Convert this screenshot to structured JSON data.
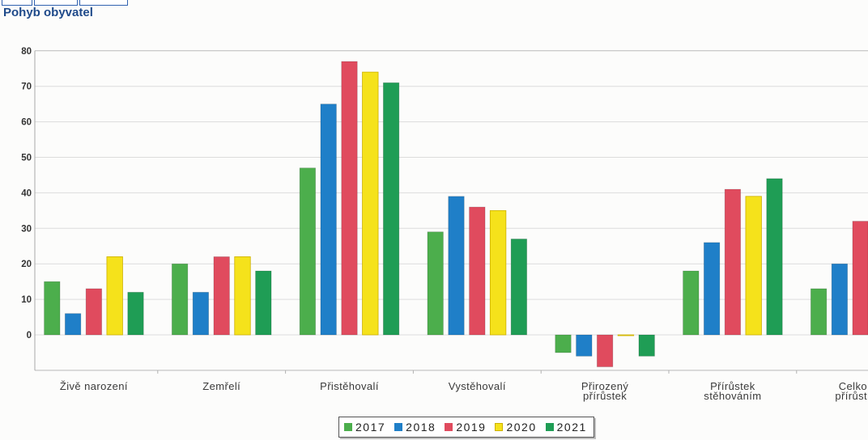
{
  "chart_data": {
    "type": "bar",
    "title": "Pohyb obyvatel",
    "xlabel": "",
    "ylabel": "",
    "categories": [
      [
        "Živě narození"
      ],
      [
        "Zemřelí"
      ],
      [
        "Přistěhovalí"
      ],
      [
        "Vystěhovalí"
      ],
      [
        "Přirozený",
        "přírůstek"
      ],
      [
        "Přírůstek",
        "stěhováním"
      ],
      [
        "Celko",
        "přírůst"
      ]
    ],
    "series": [
      {
        "name": "2017",
        "color": "#4cae4c",
        "values": [
          15,
          20,
          47,
          29,
          -5,
          18,
          13
        ]
      },
      {
        "name": "2018",
        "color": "#1f7fc8",
        "values": [
          6,
          12,
          65,
          39,
          -6,
          26,
          20
        ]
      },
      {
        "name": "2019",
        "color": "#e04b5e",
        "values": [
          13,
          22,
          77,
          36,
          -9,
          41,
          32
        ]
      },
      {
        "name": "2020",
        "color": "#f5e21b",
        "border": "#cdb100",
        "values": [
          22,
          22,
          74,
          35,
          0,
          39,
          null
        ]
      },
      {
        "name": "2021",
        "color": "#1f9d55",
        "values": [
          12,
          18,
          71,
          27,
          -6,
          44,
          null
        ]
      }
    ],
    "ylim": [
      -10,
      80
    ],
    "yticks": [
      0,
      10,
      20,
      30,
      40,
      50,
      60,
      70,
      80
    ],
    "grid": true,
    "legend": "bottom-center"
  }
}
